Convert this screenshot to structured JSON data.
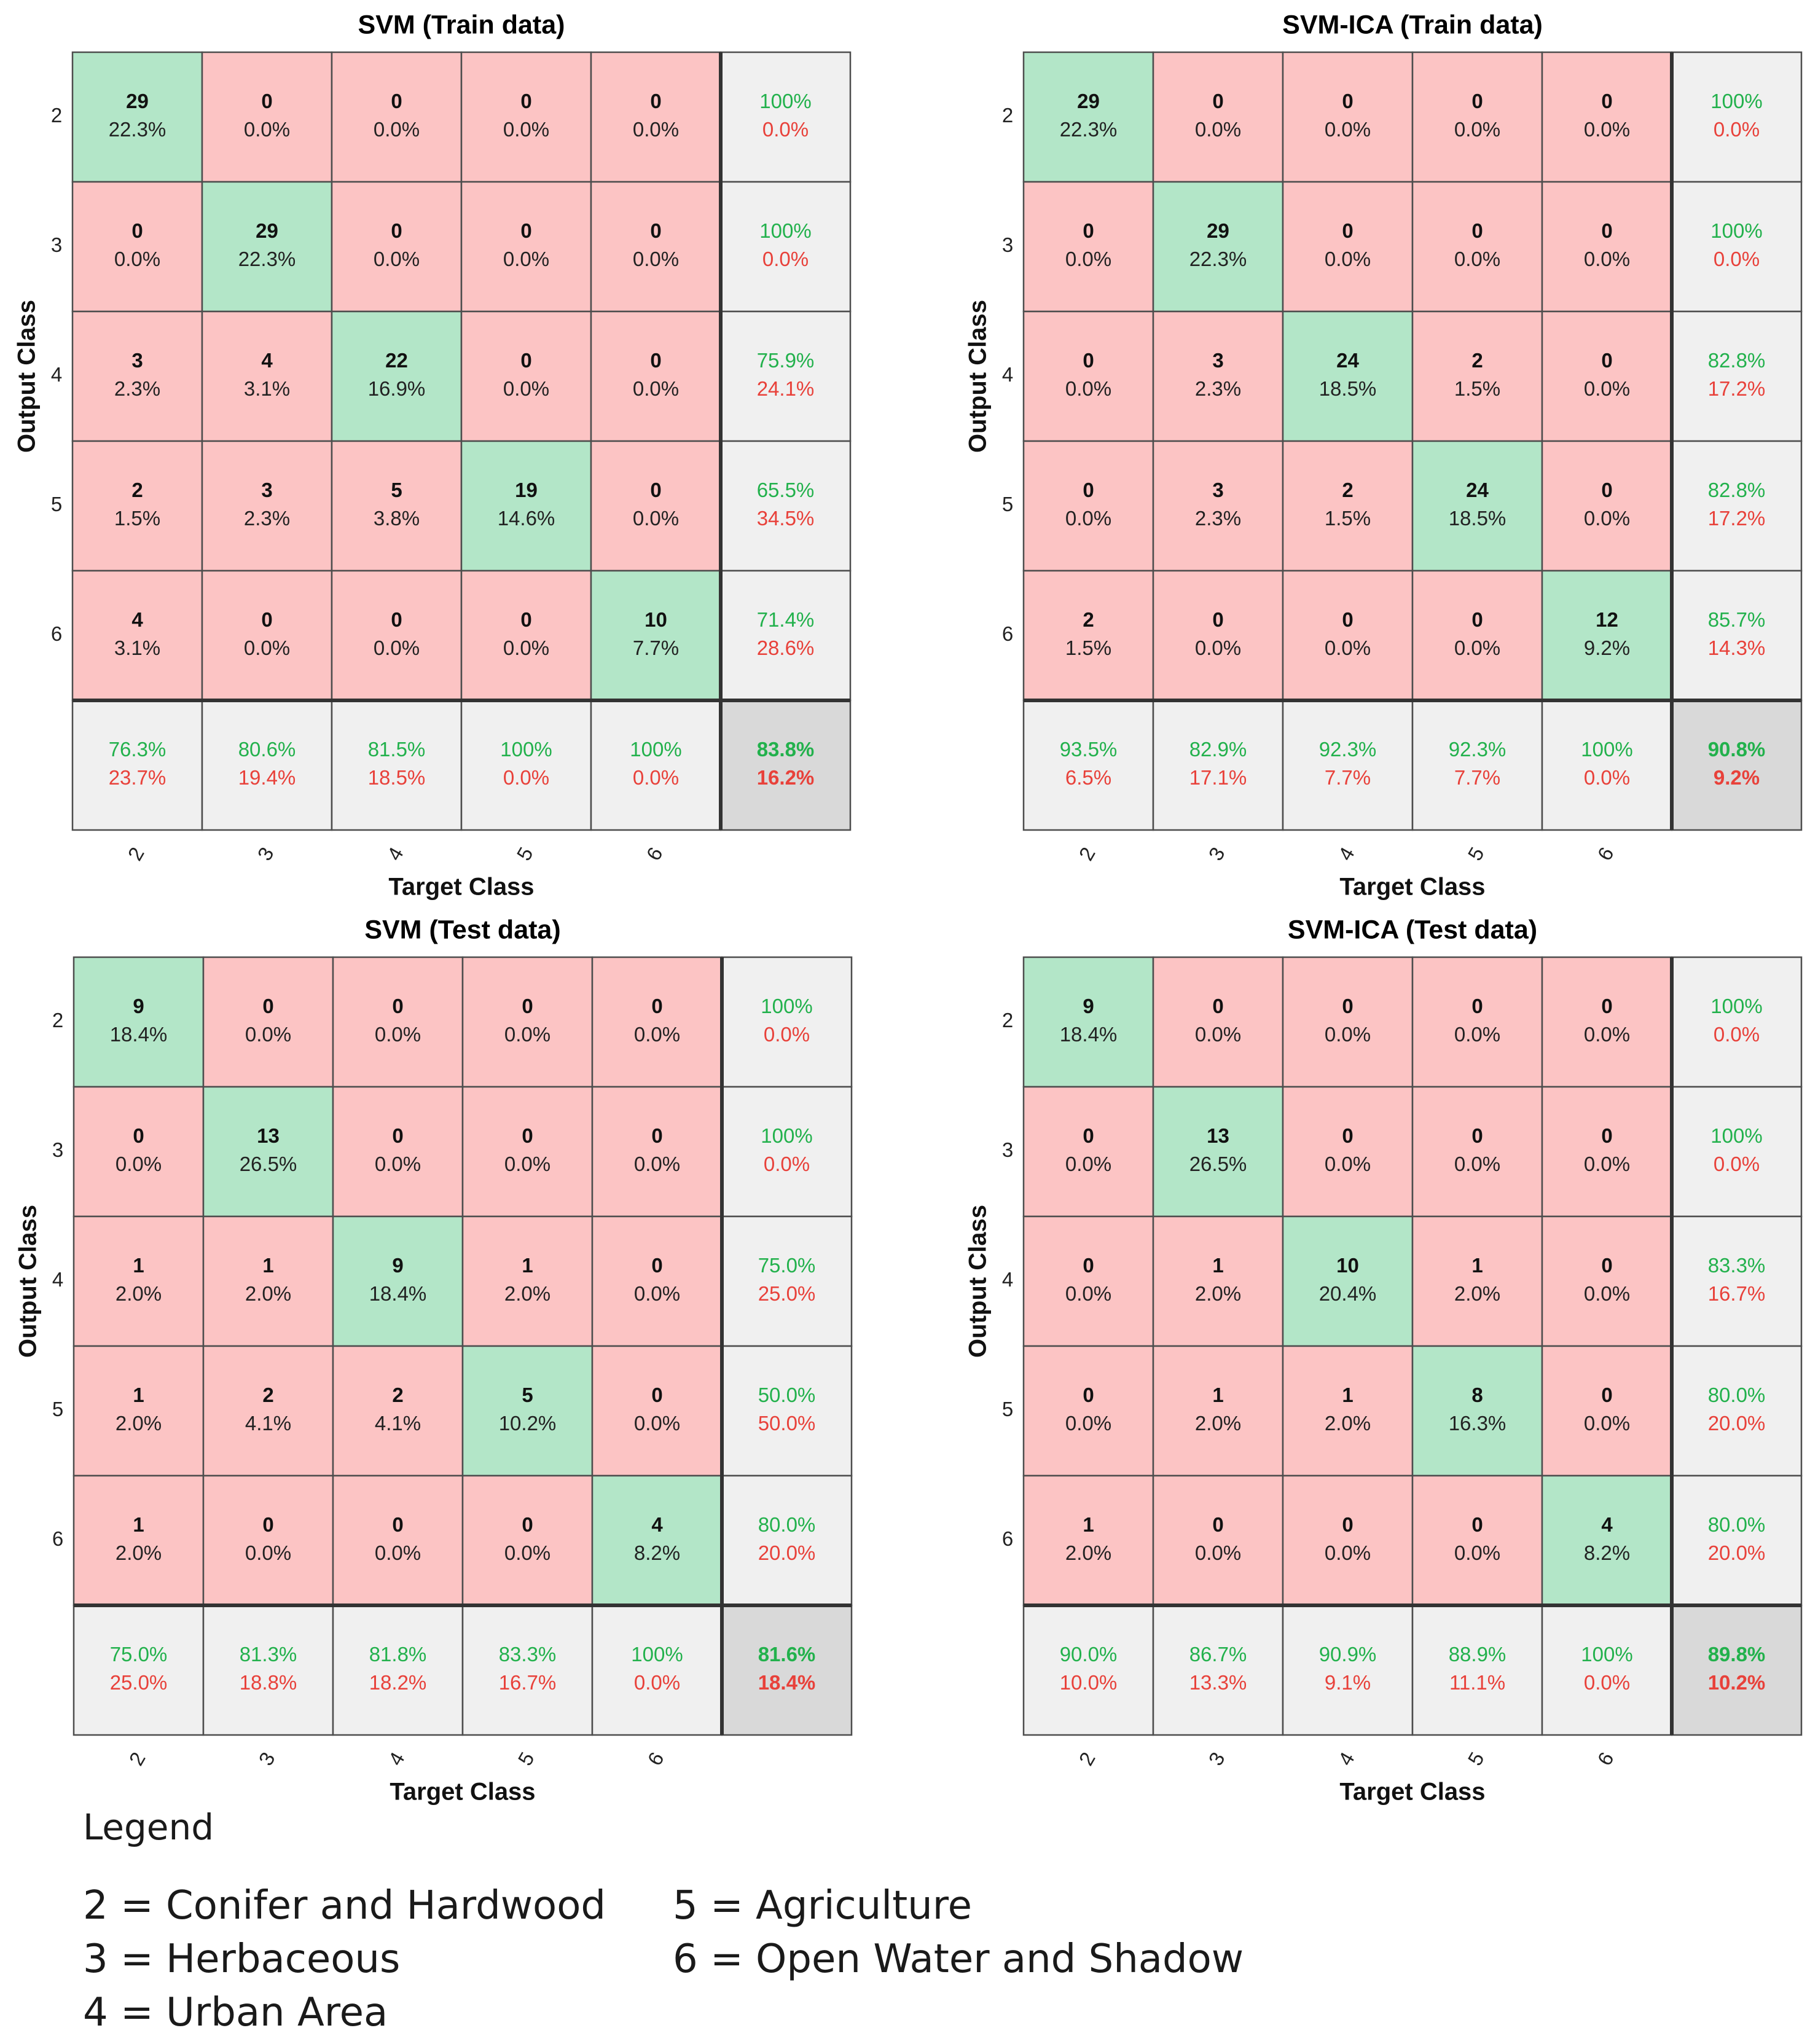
{
  "chart_data": [
    {
      "type": "heatmap",
      "title": "SVM (Train data)",
      "xlabel": "Target Class",
      "ylabel": "Output Class",
      "classes": [
        "2",
        "3",
        "4",
        "5",
        "6"
      ],
      "counts": [
        [
          29,
          0,
          0,
          0,
          0
        ],
        [
          0,
          29,
          0,
          0,
          0
        ],
        [
          3,
          4,
          22,
          0,
          0
        ],
        [
          2,
          3,
          5,
          19,
          0
        ],
        [
          4,
          0,
          0,
          0,
          10
        ]
      ],
      "percents": [
        [
          "22.3%",
          "0.0%",
          "0.0%",
          "0.0%",
          "0.0%"
        ],
        [
          "0.0%",
          "22.3%",
          "0.0%",
          "0.0%",
          "0.0%"
        ],
        [
          "2.3%",
          "3.1%",
          "16.9%",
          "0.0%",
          "0.0%"
        ],
        [
          "1.5%",
          "2.3%",
          "3.8%",
          "14.6%",
          "0.0%"
        ],
        [
          "3.1%",
          "0.0%",
          "0.0%",
          "0.0%",
          "7.7%"
        ]
      ],
      "row_summary": [
        [
          "100%",
          "0.0%"
        ],
        [
          "100%",
          "0.0%"
        ],
        [
          "75.9%",
          "24.1%"
        ],
        [
          "65.5%",
          "34.5%"
        ],
        [
          "71.4%",
          "28.6%"
        ]
      ],
      "col_summary": [
        [
          "76.3%",
          "23.7%"
        ],
        [
          "80.6%",
          "19.4%"
        ],
        [
          "81.5%",
          "18.5%"
        ],
        [
          "100%",
          "0.0%"
        ],
        [
          "100%",
          "0.0%"
        ]
      ],
      "overall": [
        "83.8%",
        "16.2%"
      ]
    },
    {
      "type": "heatmap",
      "title": "SVM-ICA (Train data)",
      "xlabel": "Target Class",
      "ylabel": "Output Class",
      "classes": [
        "2",
        "3",
        "4",
        "5",
        "6"
      ],
      "counts": [
        [
          29,
          0,
          0,
          0,
          0
        ],
        [
          0,
          29,
          0,
          0,
          0
        ],
        [
          0,
          3,
          24,
          2,
          0
        ],
        [
          0,
          3,
          2,
          24,
          0
        ],
        [
          2,
          0,
          0,
          0,
          12
        ]
      ],
      "percents": [
        [
          "22.3%",
          "0.0%",
          "0.0%",
          "0.0%",
          "0.0%"
        ],
        [
          "0.0%",
          "22.3%",
          "0.0%",
          "0.0%",
          "0.0%"
        ],
        [
          "0.0%",
          "2.3%",
          "18.5%",
          "1.5%",
          "0.0%"
        ],
        [
          "0.0%",
          "2.3%",
          "1.5%",
          "18.5%",
          "0.0%"
        ],
        [
          "1.5%",
          "0.0%",
          "0.0%",
          "0.0%",
          "9.2%"
        ]
      ],
      "row_summary": [
        [
          "100%",
          "0.0%"
        ],
        [
          "100%",
          "0.0%"
        ],
        [
          "82.8%",
          "17.2%"
        ],
        [
          "82.8%",
          "17.2%"
        ],
        [
          "85.7%",
          "14.3%"
        ]
      ],
      "col_summary": [
        [
          "93.5%",
          "6.5%"
        ],
        [
          "82.9%",
          "17.1%"
        ],
        [
          "92.3%",
          "7.7%"
        ],
        [
          "92.3%",
          "7.7%"
        ],
        [
          "100%",
          "0.0%"
        ]
      ],
      "overall": [
        "90.8%",
        "9.2%"
      ]
    },
    {
      "type": "heatmap",
      "title": "SVM (Test data)",
      "xlabel": "Target Class",
      "ylabel": "Output Class",
      "classes": [
        "2",
        "3",
        "4",
        "5",
        "6"
      ],
      "counts": [
        [
          9,
          0,
          0,
          0,
          0
        ],
        [
          0,
          13,
          0,
          0,
          0
        ],
        [
          1,
          1,
          9,
          1,
          0
        ],
        [
          1,
          2,
          2,
          5,
          0
        ],
        [
          1,
          0,
          0,
          0,
          4
        ]
      ],
      "percents": [
        [
          "18.4%",
          "0.0%",
          "0.0%",
          "0.0%",
          "0.0%"
        ],
        [
          "0.0%",
          "26.5%",
          "0.0%",
          "0.0%",
          "0.0%"
        ],
        [
          "2.0%",
          "2.0%",
          "18.4%",
          "2.0%",
          "0.0%"
        ],
        [
          "2.0%",
          "4.1%",
          "4.1%",
          "10.2%",
          "0.0%"
        ],
        [
          "2.0%",
          "0.0%",
          "0.0%",
          "0.0%",
          "8.2%"
        ]
      ],
      "row_summary": [
        [
          "100%",
          "0.0%"
        ],
        [
          "100%",
          "0.0%"
        ],
        [
          "75.0%",
          "25.0%"
        ],
        [
          "50.0%",
          "50.0%"
        ],
        [
          "80.0%",
          "20.0%"
        ]
      ],
      "col_summary": [
        [
          "75.0%",
          "25.0%"
        ],
        [
          "81.3%",
          "18.8%"
        ],
        [
          "81.8%",
          "18.2%"
        ],
        [
          "83.3%",
          "16.7%"
        ],
        [
          "100%",
          "0.0%"
        ]
      ],
      "overall": [
        "81.6%",
        "18.4%"
      ]
    },
    {
      "type": "heatmap",
      "title": "SVM-ICA (Test data)",
      "xlabel": "Target Class",
      "ylabel": "Output Class",
      "classes": [
        "2",
        "3",
        "4",
        "5",
        "6"
      ],
      "counts": [
        [
          9,
          0,
          0,
          0,
          0
        ],
        [
          0,
          13,
          0,
          0,
          0
        ],
        [
          0,
          1,
          10,
          1,
          0
        ],
        [
          0,
          1,
          1,
          8,
          0
        ],
        [
          1,
          0,
          0,
          0,
          4
        ]
      ],
      "percents": [
        [
          "18.4%",
          "0.0%",
          "0.0%",
          "0.0%",
          "0.0%"
        ],
        [
          "0.0%",
          "26.5%",
          "0.0%",
          "0.0%",
          "0.0%"
        ],
        [
          "0.0%",
          "2.0%",
          "20.4%",
          "2.0%",
          "0.0%"
        ],
        [
          "0.0%",
          "2.0%",
          "2.0%",
          "16.3%",
          "0.0%"
        ],
        [
          "2.0%",
          "0.0%",
          "0.0%",
          "0.0%",
          "8.2%"
        ]
      ],
      "row_summary": [
        [
          "100%",
          "0.0%"
        ],
        [
          "100%",
          "0.0%"
        ],
        [
          "83.3%",
          "16.7%"
        ],
        [
          "80.0%",
          "20.0%"
        ],
        [
          "80.0%",
          "20.0%"
        ]
      ],
      "col_summary": [
        [
          "90.0%",
          "10.0%"
        ],
        [
          "86.7%",
          "13.3%"
        ],
        [
          "90.9%",
          "9.1%"
        ],
        [
          "88.9%",
          "11.1%"
        ],
        [
          "100%",
          "0.0%"
        ]
      ],
      "overall": [
        "89.8%",
        "10.2%"
      ]
    }
  ],
  "colors": {
    "diagonal": "#b3e6c8",
    "off_diagonal": "#fcc4c4",
    "summary": "#f0f0f0",
    "overall": "#d9d9d9",
    "good_text": "#22b14c",
    "bad_text": "#e8413a",
    "border": "#4d4d4d"
  },
  "legend": {
    "title": "Legend",
    "items": [
      "2 = Conifer and Hardwood",
      "3 = Herbaceous",
      "4 = Urban Area",
      "5 = Agriculture",
      "6 = Open Water and Shadow"
    ]
  }
}
